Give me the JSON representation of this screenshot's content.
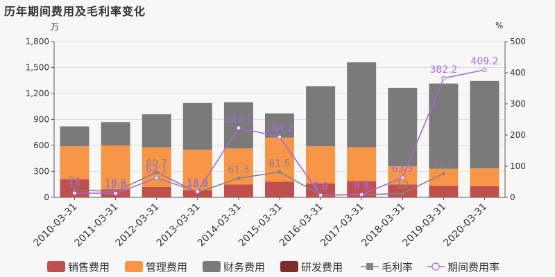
{
  "title": "历年期间费用及毛利率变化",
  "units": {
    "left": "万",
    "right": "%"
  },
  "chart_data": {
    "type": "bar",
    "stacked": true,
    "categories": [
      "2010-03-31",
      "2011-03-31",
      "2012-03-31",
      "2013-03-31",
      "2014-03-31",
      "2015-03-31",
      "2016-03-31",
      "2017-03-31",
      "2018-03-31",
      "2019-03-31",
      "2020-03-31"
    ],
    "series": [
      {
        "name": "销售费用",
        "type": "bar",
        "axis": "left",
        "color": "#c0504d",
        "values": [
          210,
          95,
          120,
          85,
          150,
          180,
          160,
          190,
          150,
          135,
          130
        ]
      },
      {
        "name": "管理费用",
        "type": "bar",
        "axis": "left",
        "color": "#f79646",
        "values": [
          380,
          505,
          460,
          465,
          415,
          510,
          430,
          390,
          210,
          195,
          205
        ]
      },
      {
        "name": "财务费用",
        "type": "bar",
        "axis": "left",
        "color": "#7a7a7a",
        "values": [
          230,
          270,
          380,
          540,
          535,
          280,
          695,
          980,
          905,
          985,
          1010
        ]
      },
      {
        "name": "研发费用",
        "type": "bar",
        "axis": "left",
        "color": "#7b2c2c",
        "values": [
          0,
          0,
          0,
          0,
          0,
          0,
          0,
          0,
          0,
          0,
          0
        ]
      },
      {
        "name": "毛利率",
        "type": "line",
        "axis": "right",
        "color": "#8c7e8c",
        "marker": "square",
        "values": [
          24,
          18.9,
          80.7,
          15.9,
          61.3,
          81.5,
          7.8,
          8.7,
          12,
          76.5,
          null
        ],
        "labels": [
          "24",
          "18.9",
          "80.7",
          "15.9",
          "61.3",
          "81.5",
          "7.8",
          "8.7",
          "12",
          "76.5",
          ""
        ]
      },
      {
        "name": "期间费用率",
        "type": "line",
        "axis": "right",
        "color": "#a768d9",
        "marker": "circle",
        "values": [
          14,
          12.6,
          62.1,
          18.5,
          223.1,
          194.2,
          6.8,
          8.8,
          63.3,
          382.2,
          409.2
        ],
        "labels": [
          "14",
          "12.6",
          "62.1",
          "18.5",
          "223.1",
          "194.2",
          "6.8",
          "8.8",
          "63.3",
          "382.2",
          "409.2"
        ]
      }
    ],
    "y_left": {
      "min": 0,
      "max": 1800,
      "ticks": [
        "0",
        "300",
        "600",
        "900",
        "1,200",
        "1,500",
        "1,800"
      ]
    },
    "y_right": {
      "min": 0,
      "max": 500,
      "ticks": [
        "0",
        "100",
        "200",
        "300",
        "400",
        "500"
      ]
    },
    "grid": true,
    "legend": "bottom"
  }
}
